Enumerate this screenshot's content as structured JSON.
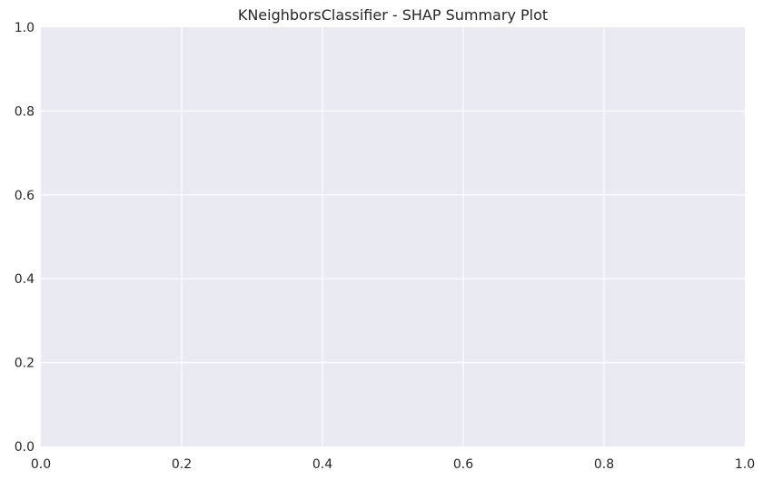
{
  "chart_data": {
    "type": "scatter",
    "title": "KNeighborsClassifier - SHAP Summary Plot",
    "xlabel": "",
    "ylabel": "",
    "xlim": [
      0,
      1
    ],
    "ylim": [
      0,
      1
    ],
    "x_ticks": [
      0.0,
      0.2,
      0.4,
      0.6,
      0.8,
      1.0
    ],
    "y_ticks": [
      0.0,
      0.2,
      0.4,
      0.6,
      0.8,
      1.0
    ],
    "x_tick_labels": [
      "0.0",
      "0.2",
      "0.4",
      "0.6",
      "0.8",
      "1.0"
    ],
    "y_tick_labels": [
      "0.0",
      "0.2",
      "0.4",
      "0.6",
      "0.8",
      "1.0"
    ],
    "points": [],
    "grid": true,
    "plot_background": "#eaeaf2",
    "grid_color": "#ffffff",
    "text_color": "#262626"
  }
}
